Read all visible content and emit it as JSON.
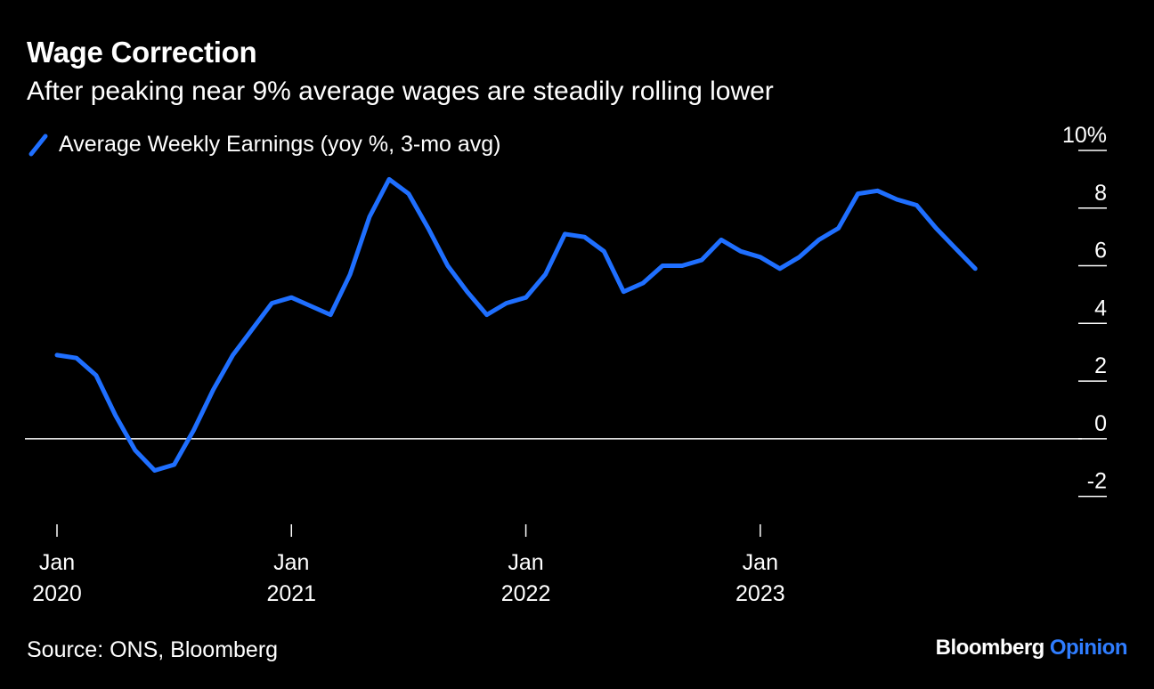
{
  "title": "Wage Correction",
  "subtitle": "After peaking near 9% average wages are steadily rolling lower",
  "source": "Source: ONS, Bloomberg",
  "brand": {
    "name": "Bloomberg",
    "section": "Opinion"
  },
  "colors": {
    "series": "#1f6fff",
    "background": "#000000",
    "text": "#ffffff",
    "brand_accent": "#2f7dff"
  },
  "chart_data": {
    "type": "line",
    "title": "Wage Correction",
    "subtitle": "After peaking near 9% average wages are steadily rolling lower",
    "x_start": "2020-01",
    "x": [
      "2020-01",
      "2020-02",
      "2020-03",
      "2020-04",
      "2020-05",
      "2020-06",
      "2020-07",
      "2020-08",
      "2020-09",
      "2020-10",
      "2020-11",
      "2020-12",
      "2021-01",
      "2021-02",
      "2021-03",
      "2021-04",
      "2021-05",
      "2021-06",
      "2021-07",
      "2021-08",
      "2021-09",
      "2021-10",
      "2021-11",
      "2021-12",
      "2022-01",
      "2022-02",
      "2022-03",
      "2022-04",
      "2022-05",
      "2022-06",
      "2022-07",
      "2022-08",
      "2022-09",
      "2022-10",
      "2022-11",
      "2022-12",
      "2023-01",
      "2023-02",
      "2023-03",
      "2023-04",
      "2023-05",
      "2023-06",
      "2023-07",
      "2023-08",
      "2023-09",
      "2023-10",
      "2023-11",
      "2023-12"
    ],
    "series": [
      {
        "name": "Average Weekly Earnings (yoy %, 3-mo avg)",
        "values": [
          2.9,
          2.8,
          2.2,
          0.8,
          -0.4,
          -1.1,
          -0.9,
          0.3,
          1.7,
          2.9,
          3.8,
          4.7,
          4.9,
          4.6,
          4.3,
          5.7,
          7.7,
          9.0,
          8.5,
          7.3,
          6.0,
          5.1,
          4.3,
          4.7,
          4.9,
          5.7,
          7.1,
          7.0,
          6.5,
          5.1,
          5.4,
          6.0,
          6.0,
          6.2,
          6.9,
          6.5,
          6.3,
          5.9,
          6.3,
          6.9,
          7.3,
          8.5,
          8.6,
          8.3,
          8.1,
          7.3,
          6.6,
          5.9
        ]
      }
    ],
    "ylim": [
      -3,
      10
    ],
    "yticks": [
      {
        "value": 10,
        "label": "10%"
      },
      {
        "value": 8,
        "label": "8"
      },
      {
        "value": 6,
        "label": "6"
      },
      {
        "value": 4,
        "label": "4"
      },
      {
        "value": 2,
        "label": "2"
      },
      {
        "value": 0,
        "label": "0"
      },
      {
        "value": -2,
        "label": "-2"
      }
    ],
    "xticks": [
      {
        "x": "2020-01",
        "line1": "Jan",
        "line2": "2020"
      },
      {
        "x": "2021-01",
        "line1": "Jan",
        "line2": "2021"
      },
      {
        "x": "2022-01",
        "line1": "Jan",
        "line2": "2022"
      },
      {
        "x": "2023-01",
        "line1": "Jan",
        "line2": "2023"
      }
    ],
    "legend": "top-left",
    "grid": false,
    "zero_line": true
  }
}
